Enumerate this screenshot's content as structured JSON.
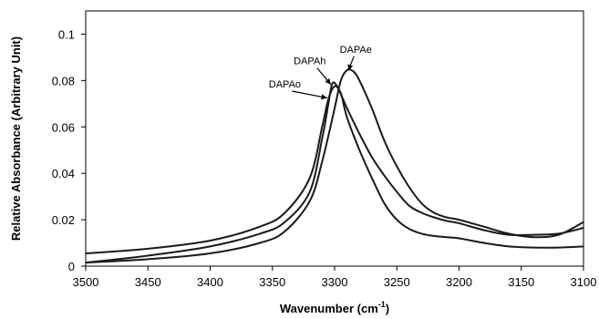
{
  "chart_data": {
    "type": "line",
    "xlabel_main": "Wavenumber (cm",
    "xlabel_sup": "-1",
    "xlabel_end": ")",
    "ylabel": "Relative Absorbance (Arbitrary Unit)",
    "xlim": [
      3500,
      3100
    ],
    "ylim": [
      0,
      0.11
    ],
    "x_reversed": true,
    "xticks": [
      3500,
      3450,
      3400,
      3350,
      3300,
      3250,
      3200,
      3150,
      3100
    ],
    "yticks": [
      0,
      0.02,
      0.04,
      0.06,
      0.08,
      0.1
    ],
    "ytick_labels": [
      "0",
      "0.02",
      "0.04",
      "0.06",
      "0.08",
      "0.1"
    ],
    "grid": false,
    "line_color": "#1a1a1a",
    "series": [
      {
        "name": "DAPAe",
        "x": [
          3500,
          3450,
          3400,
          3360,
          3340,
          3320,
          3310,
          3300,
          3295,
          3290,
          3285,
          3280,
          3270,
          3260,
          3250,
          3240,
          3230,
          3220,
          3210,
          3200,
          3180,
          3160,
          3140,
          3120,
          3100
        ],
        "y": [
          0.0015,
          0.003,
          0.0055,
          0.01,
          0.015,
          0.028,
          0.045,
          0.068,
          0.08,
          0.0845,
          0.084,
          0.08,
          0.068,
          0.054,
          0.043,
          0.034,
          0.027,
          0.023,
          0.021,
          0.02,
          0.017,
          0.014,
          0.0125,
          0.0135,
          0.019
        ]
      },
      {
        "name": "DAPAh",
        "x": [
          3500,
          3450,
          3400,
          3360,
          3340,
          3320,
          3310,
          3305,
          3302,
          3298,
          3290,
          3280,
          3270,
          3260,
          3250,
          3240,
          3230,
          3220,
          3210,
          3200,
          3180,
          3160,
          3140,
          3120,
          3100
        ],
        "y": [
          0.0015,
          0.0045,
          0.0085,
          0.014,
          0.019,
          0.032,
          0.055,
          0.07,
          0.0785,
          0.0775,
          0.068,
          0.057,
          0.047,
          0.039,
          0.032,
          0.026,
          0.023,
          0.021,
          0.0195,
          0.0185,
          0.0155,
          0.0135,
          0.0135,
          0.014,
          0.0165
        ]
      },
      {
        "name": "DAPAo",
        "x": [
          3500,
          3450,
          3400,
          3360,
          3340,
          3320,
          3310,
          3305,
          3300,
          3295,
          3290,
          3280,
          3270,
          3260,
          3250,
          3240,
          3230,
          3220,
          3210,
          3200,
          3180,
          3160,
          3140,
          3120,
          3100
        ],
        "y": [
          0.0055,
          0.0075,
          0.011,
          0.017,
          0.023,
          0.038,
          0.06,
          0.072,
          0.0775,
          0.0745,
          0.064,
          0.05,
          0.038,
          0.027,
          0.02,
          0.016,
          0.014,
          0.013,
          0.0125,
          0.012,
          0.01,
          0.0085,
          0.008,
          0.008,
          0.0085
        ]
      }
    ],
    "annotations": [
      {
        "text": "DAPAe",
        "x": 3283,
        "y": 0.092,
        "arrow_to": [
          3289,
          0.0843
        ]
      },
      {
        "text": "DAPAh",
        "x": 3320,
        "y": 0.087,
        "arrow_to": [
          3303,
          0.0783
        ]
      },
      {
        "text": "DAPAo",
        "x": 3340,
        "y": 0.077,
        "arrow_to": [
          3306,
          0.0725
        ]
      }
    ]
  }
}
